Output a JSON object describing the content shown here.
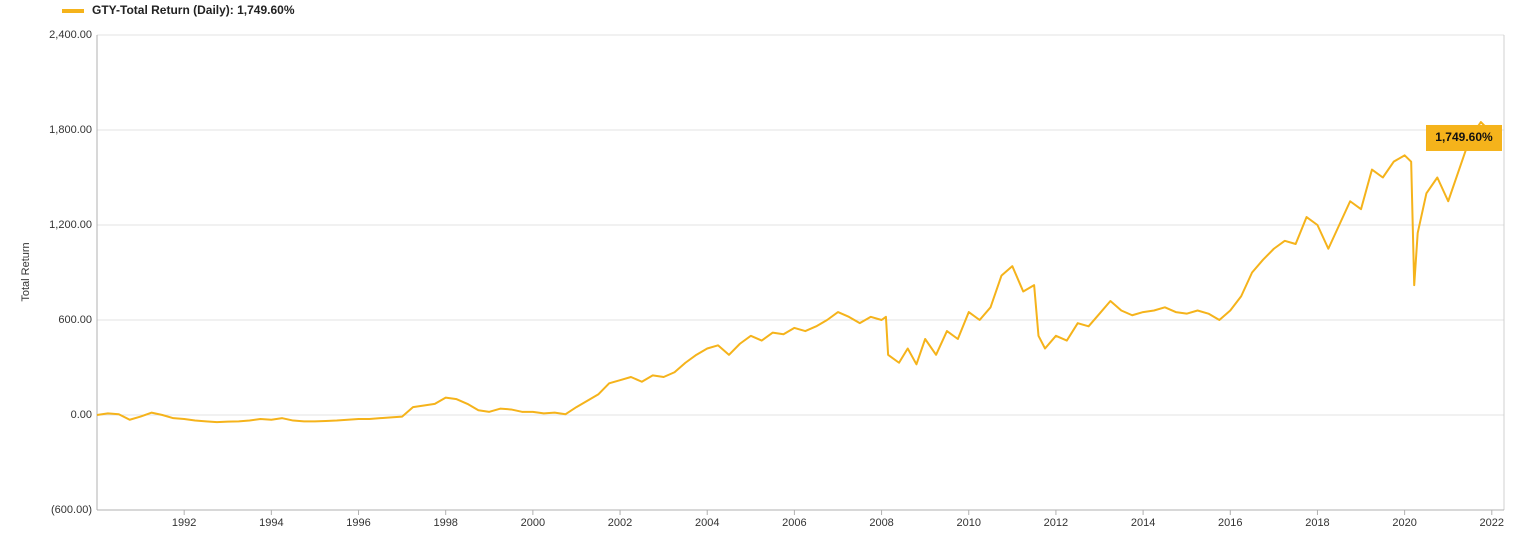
{
  "chart_data": {
    "type": "line",
    "y_label": "Total Return",
    "xlim": [
      1990.0,
      2022.28
    ],
    "xticks": [
      1992,
      1994,
      1996,
      1998,
      2000,
      2002,
      2004,
      2006,
      2008,
      2010,
      2012,
      2014,
      2016,
      2018,
      2020,
      2022
    ],
    "ylim": [
      -600,
      2400
    ],
    "yticks": [
      {
        "value": -600,
        "label": "(600.00)"
      },
      {
        "value": 0,
        "label": "0.00"
      },
      {
        "value": 600,
        "label": "600.00"
      },
      {
        "value": 1200,
        "label": "1,200.00"
      },
      {
        "value": 1800,
        "label": "1,800.00"
      },
      {
        "value": 2400,
        "label": "2,400.00"
      }
    ],
    "grid": true,
    "x": [
      1990.0,
      1990.25,
      1990.5,
      1990.75,
      1991.0,
      1991.25,
      1991.5,
      1991.75,
      1992.0,
      1992.25,
      1992.5,
      1992.75,
      1993.0,
      1993.25,
      1993.5,
      1993.75,
      1994.0,
      1994.25,
      1994.5,
      1994.75,
      1995.0,
      1995.25,
      1995.5,
      1995.75,
      1996.0,
      1996.25,
      1996.5,
      1996.75,
      1997.0,
      1997.25,
      1997.5,
      1997.75,
      1998.0,
      1998.25,
      1998.5,
      1998.75,
      1999.0,
      1999.25,
      1999.5,
      1999.75,
      2000.0,
      2000.25,
      2000.5,
      2000.75,
      2001.0,
      2001.25,
      2001.5,
      2001.75,
      2002.0,
      2002.25,
      2002.5,
      2002.75,
      2003.0,
      2003.25,
      2003.5,
      2003.75,
      2004.0,
      2004.25,
      2004.5,
      2004.75,
      2005.0,
      2005.25,
      2005.5,
      2005.75,
      2006.0,
      2006.25,
      2006.5,
      2006.75,
      2007.0,
      2007.25,
      2007.5,
      2007.75,
      2008.0,
      2008.1,
      2008.15,
      2008.4,
      2008.6,
      2008.8,
      2009.0,
      2009.25,
      2009.5,
      2009.75,
      2010.0,
      2010.25,
      2010.5,
      2010.75,
      2011.0,
      2011.25,
      2011.5,
      2011.6,
      2011.75,
      2012.0,
      2012.25,
      2012.5,
      2012.75,
      2013.0,
      2013.25,
      2013.5,
      2013.75,
      2014.0,
      2014.25,
      2014.5,
      2014.75,
      2015.0,
      2015.25,
      2015.5,
      2015.75,
      2016.0,
      2016.25,
      2016.5,
      2016.75,
      2017.0,
      2017.25,
      2017.5,
      2017.75,
      2018.0,
      2018.25,
      2018.5,
      2018.75,
      2019.0,
      2019.25,
      2019.5,
      2019.75,
      2020.0,
      2020.15,
      2020.22,
      2020.3,
      2020.5,
      2020.75,
      2021.0,
      2021.25,
      2021.5,
      2021.75,
      2022.0,
      2022.2
    ],
    "series": [
      {
        "name": "GTY-Total Return (Daily): 1,749.60%",
        "color": "#f5b31b",
        "values": [
          0,
          10,
          5,
          -30,
          -10,
          15,
          0,
          -20,
          -25,
          -35,
          -40,
          -45,
          -42,
          -40,
          -35,
          -25,
          -30,
          -20,
          -35,
          -40,
          -40,
          -38,
          -35,
          -30,
          -25,
          -25,
          -20,
          -15,
          -10,
          50,
          60,
          70,
          110,
          100,
          70,
          30,
          20,
          40,
          35,
          20,
          20,
          10,
          15,
          5,
          50,
          90,
          130,
          200,
          220,
          240,
          210,
          250,
          240,
          270,
          330,
          380,
          420,
          440,
          380,
          450,
          500,
          470,
          520,
          510,
          550,
          530,
          560,
          600,
          650,
          620,
          580,
          620,
          600,
          620,
          380,
          330,
          420,
          320,
          480,
          380,
          530,
          480,
          650,
          600,
          680,
          880,
          940,
          780,
          820,
          500,
          420,
          500,
          470,
          580,
          560,
          640,
          720,
          660,
          630,
          650,
          660,
          680,
          650,
          640,
          660,
          640,
          600,
          660,
          750,
          900,
          980,
          1050,
          1100,
          1080,
          1250,
          1200,
          1050,
          1200,
          1350,
          1300,
          1550,
          1500,
          1600,
          1640,
          1600,
          820,
          1150,
          1400,
          1500,
          1350,
          1550,
          1750,
          1850,
          1780,
          1749.6
        ]
      }
    ],
    "end_label": {
      "value": 1749.6,
      "label": "1,749.60%"
    }
  }
}
